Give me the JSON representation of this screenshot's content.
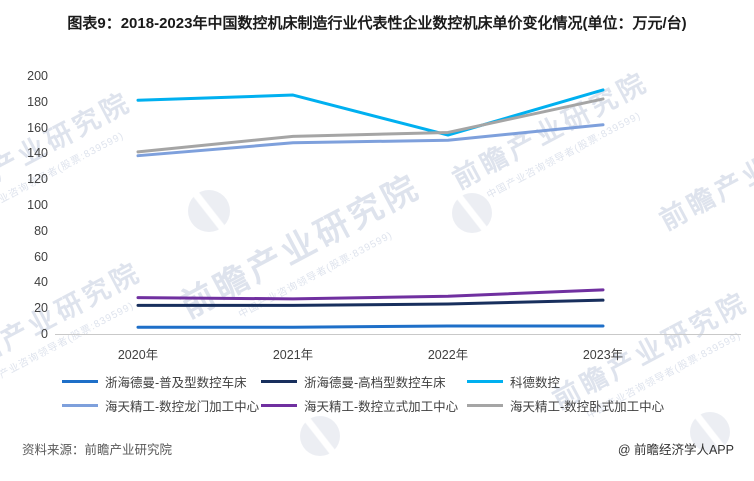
{
  "title": "图表9：2018-2023年中国数控机床制造行业代表性企业数控机床单价变化情况(单位：万元/台)",
  "source": "资料来源：前瞻产业研究院",
  "credit": "@ 前瞻经济学人APP",
  "watermark": {
    "brand": "前瞻产业研究院",
    "tagline": "中国产业咨询领导者(股票:839599)"
  },
  "chart_data": {
    "type": "line",
    "title": "图表9：2018-2023年中国数控机床制造行业代表性企业数控机床单价变化情况",
    "unit": "万元/台",
    "categories": [
      "2020年",
      "2021年",
      "2022年",
      "2023年"
    ],
    "series": [
      {
        "name": "浙海德曼-普及型数控车床",
        "color": "#1E6FC8",
        "values": [
          6,
          6,
          7,
          7
        ]
      },
      {
        "name": "浙海德曼-高档型数控车床",
        "color": "#182F5D",
        "values": [
          23,
          23,
          24,
          27
        ]
      },
      {
        "name": "科德数控",
        "color": "#00B0F0",
        "values": [
          182,
          186,
          155,
          190
        ]
      },
      {
        "name": "海天精工-数控龙门加工中心",
        "color": "#7EA0DC",
        "values": [
          139,
          149,
          151,
          163
        ]
      },
      {
        "name": "海天精工-数控立式加工中心",
        "color": "#7030A0",
        "values": [
          29,
          28,
          30,
          35
        ]
      },
      {
        "name": "海天精工-数控卧式加工中心",
        "color": "#A5A5A5",
        "values": [
          142,
          154,
          157,
          183
        ]
      }
    ],
    "ylim": [
      0,
      200
    ],
    "ytick_step": 20,
    "grid": false,
    "legend_position": "bottom",
    "axis_color": "#C9C9C9"
  }
}
